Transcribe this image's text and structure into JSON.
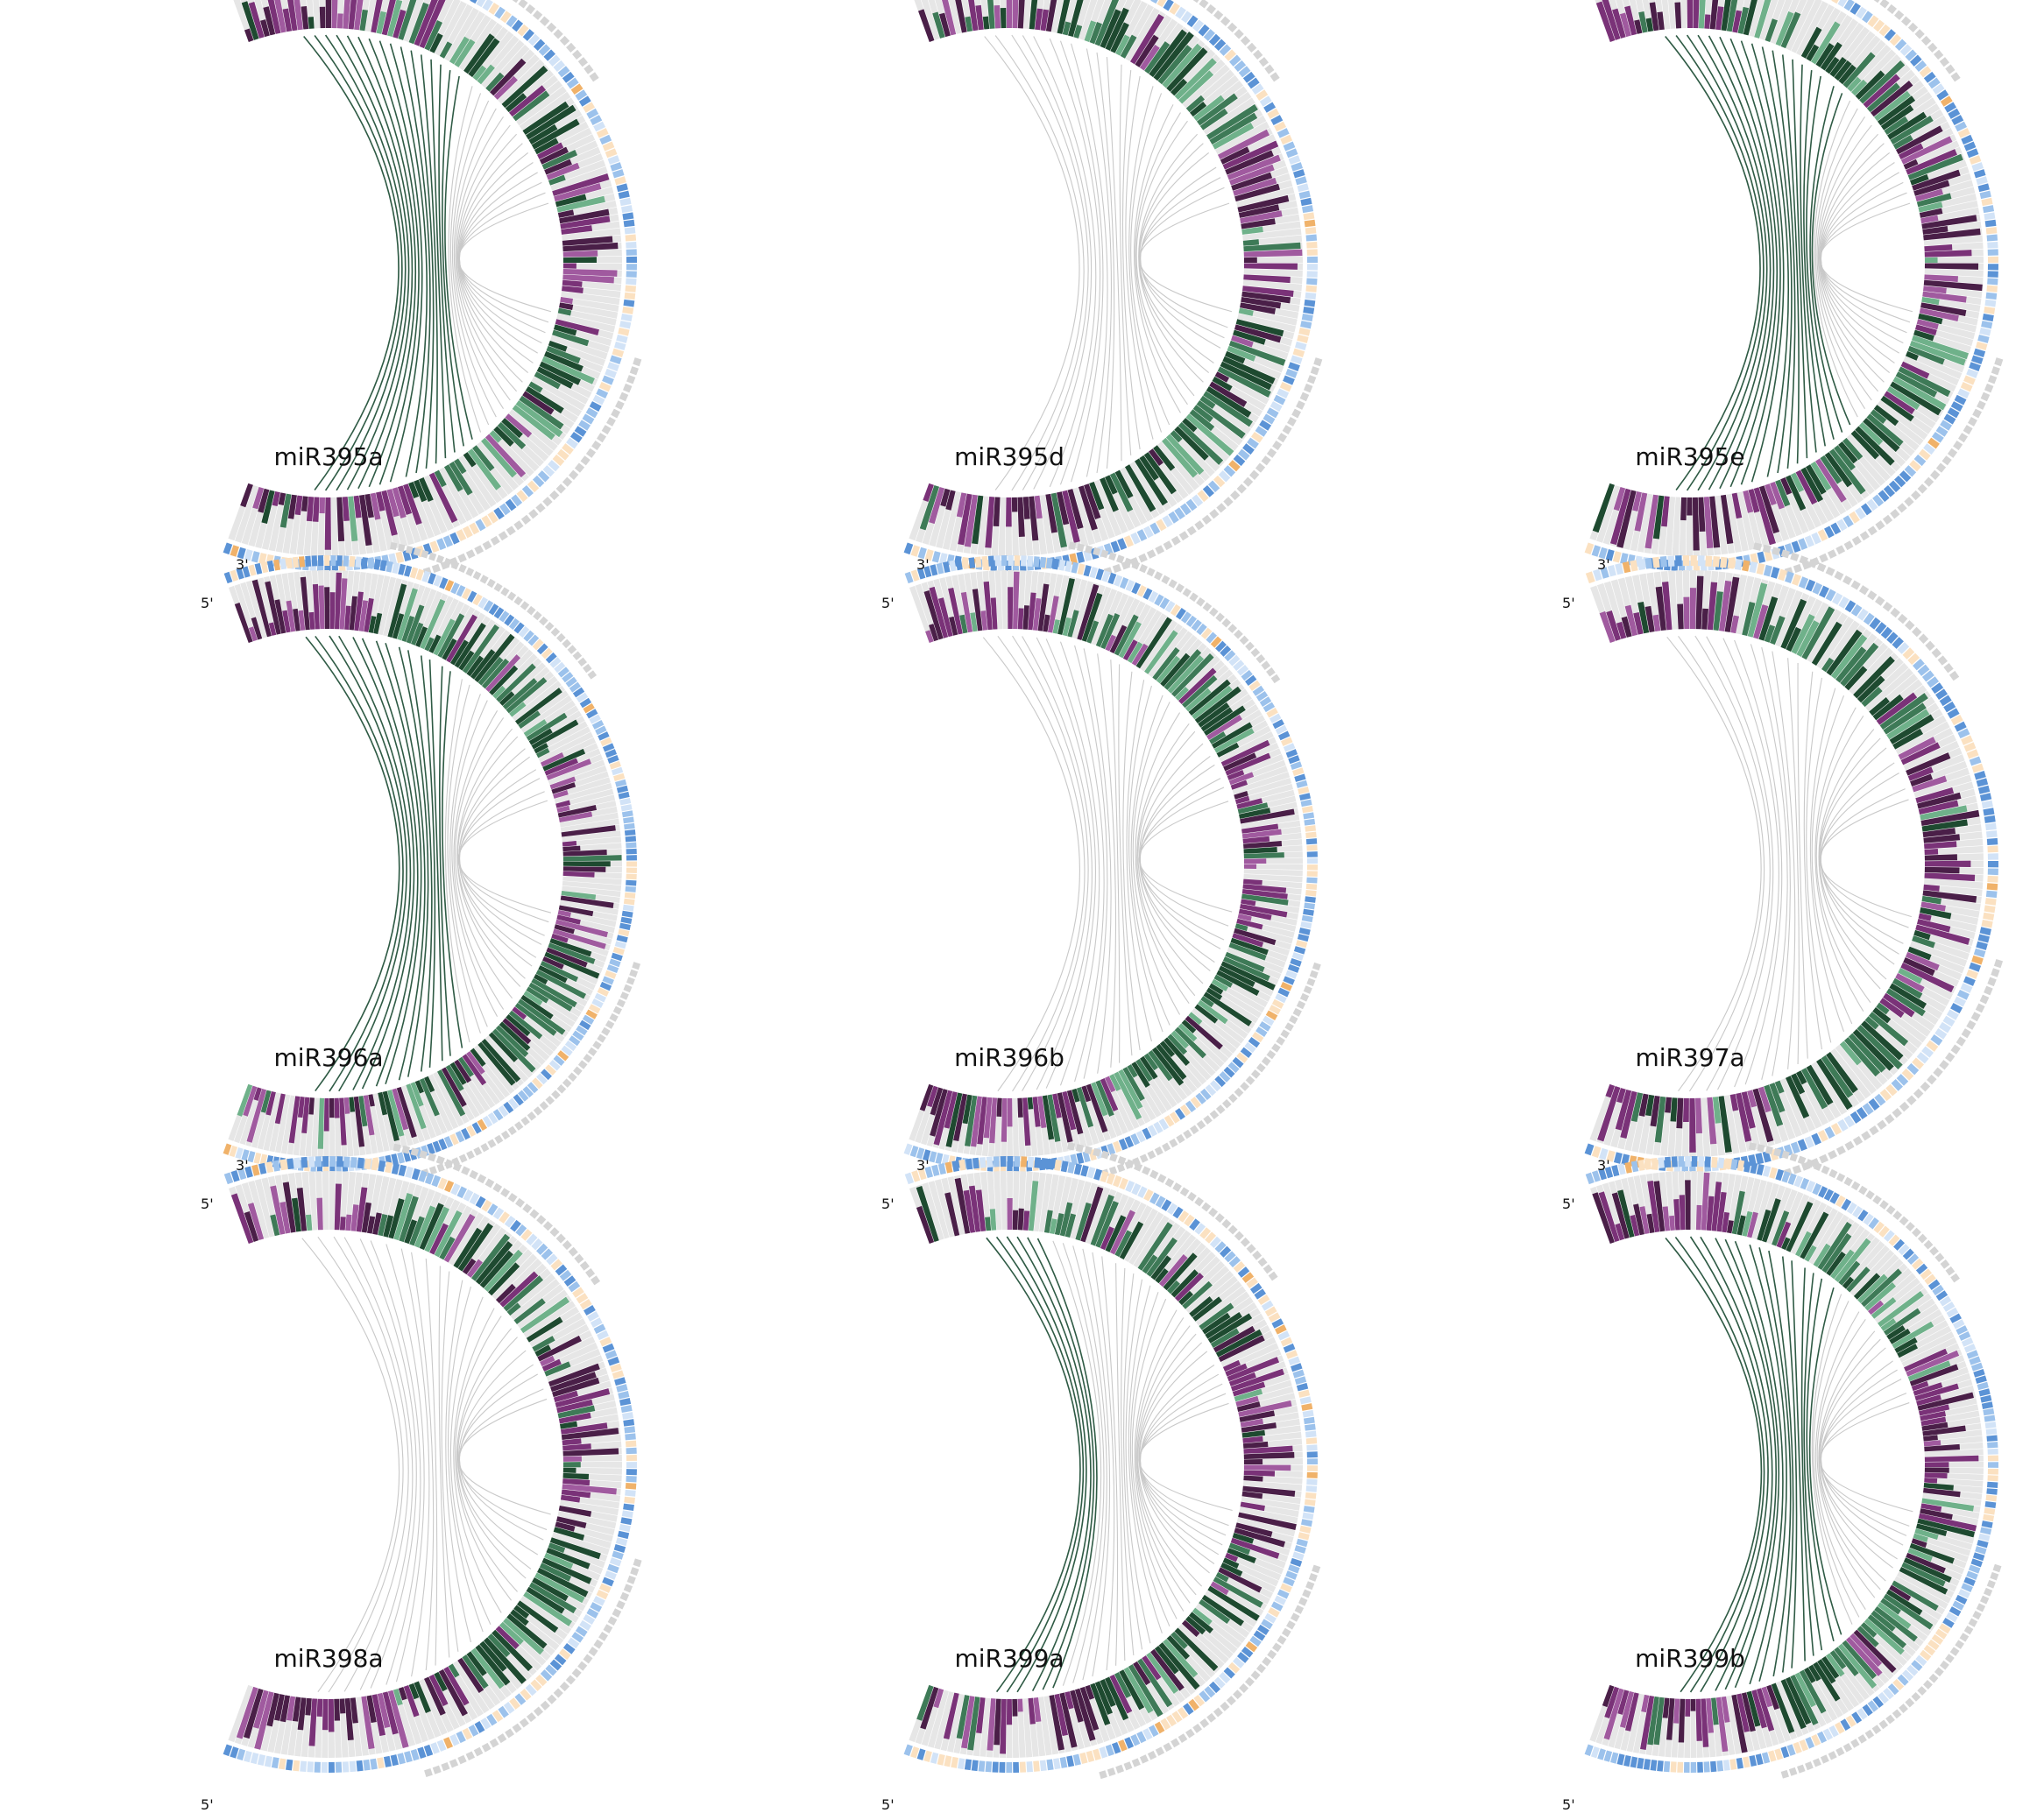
{
  "figure": {
    "end_labels": {
      "five_prime": "5'",
      "three_prime": "3'"
    },
    "colors": {
      "track_bg": "#e6e6e6",
      "green_dark": "#1e4a30",
      "green_mid": "#3e7a57",
      "green_light": "#6fb18a",
      "purple_dark": "#4a1f48",
      "purple_mid": "#7a3278",
      "purple_light": "#a05a9f",
      "seq_blue_dark": "#5b93d6",
      "seq_blue_mid": "#9cc2ec",
      "seq_blue_light": "#d2e3f7",
      "seq_orange": "#fbe1c1",
      "seq_orange_dark": "#f0b26a",
      "arc_dark": "#2f5b45",
      "arc_light": "#c9c9c9",
      "outer_arc": "#d4d4d4"
    }
  },
  "panels": [
    {
      "title": "miR395a",
      "length": 160,
      "seed": 11,
      "arcs_dark": 16,
      "arcs_light": 14
    },
    {
      "title": "miR395d",
      "length": 160,
      "seed": 23,
      "arcs_dark": 0,
      "arcs_light": 26
    },
    {
      "title": "miR395e",
      "length": 160,
      "seed": 37,
      "arcs_dark": 18,
      "arcs_light": 12
    },
    {
      "title": "miR396a",
      "length": 185,
      "seed": 41,
      "arcs_dark": 14,
      "arcs_light": 14
    },
    {
      "title": "miR396b",
      "length": 180,
      "seed": 53,
      "arcs_dark": 0,
      "arcs_light": 26
    },
    {
      "title": "miR397a",
      "length": 155,
      "seed": 67,
      "arcs_dark": 0,
      "arcs_light": 24
    },
    {
      "title": "miR398a",
      "length": 165,
      "seed": 71,
      "arcs_dark": 0,
      "arcs_light": 24
    },
    {
      "title": "miR399a",
      "length": 170,
      "seed": 83,
      "arcs_dark": 6,
      "arcs_light": 24
    },
    {
      "title": "miR399b",
      "length": 175,
      "seed": 97,
      "arcs_dark": 16,
      "arcs_light": 12
    }
  ]
}
